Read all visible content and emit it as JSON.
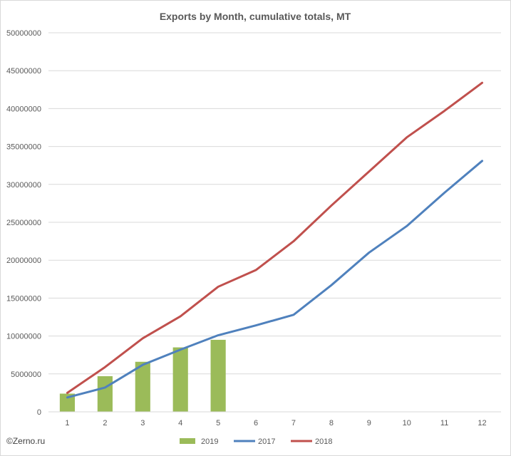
{
  "chart_data": {
    "type": "bar+line",
    "title": "Exports by Month, cumulative totals, MT",
    "xlabel": "",
    "ylabel": "",
    "categories": [
      "1",
      "2",
      "3",
      "4",
      "5",
      "6",
      "7",
      "8",
      "9",
      "10",
      "11",
      "12"
    ],
    "ylim": [
      0,
      50000000
    ],
    "yticks": [
      "0",
      "5000000",
      "10000000",
      "15000000",
      "20000000",
      "25000000",
      "30000000",
      "35000000",
      "40000000",
      "45000000",
      "50000000"
    ],
    "grid": true,
    "legend_position": "bottom",
    "series": [
      {
        "name": "2019",
        "kind": "bar",
        "color": "#9bbb59",
        "values": [
          2400000,
          4700000,
          6600000,
          8500000,
          9500000,
          null,
          null,
          null,
          null,
          null,
          null,
          null
        ]
      },
      {
        "name": "2017",
        "kind": "line",
        "color": "#4f81bd",
        "values": [
          1900000,
          3200000,
          6200000,
          8200000,
          10100000,
          11400000,
          12800000,
          16700000,
          21000000,
          24500000,
          28900000,
          33100000
        ]
      },
      {
        "name": "2018",
        "kind": "line",
        "color": "#c0504d",
        "values": [
          2500000,
          5900000,
          9700000,
          12600000,
          16500000,
          18700000,
          22500000,
          27200000,
          31700000,
          36200000,
          39700000,
          43400000
        ]
      }
    ]
  },
  "credit": "©Zerno.ru"
}
